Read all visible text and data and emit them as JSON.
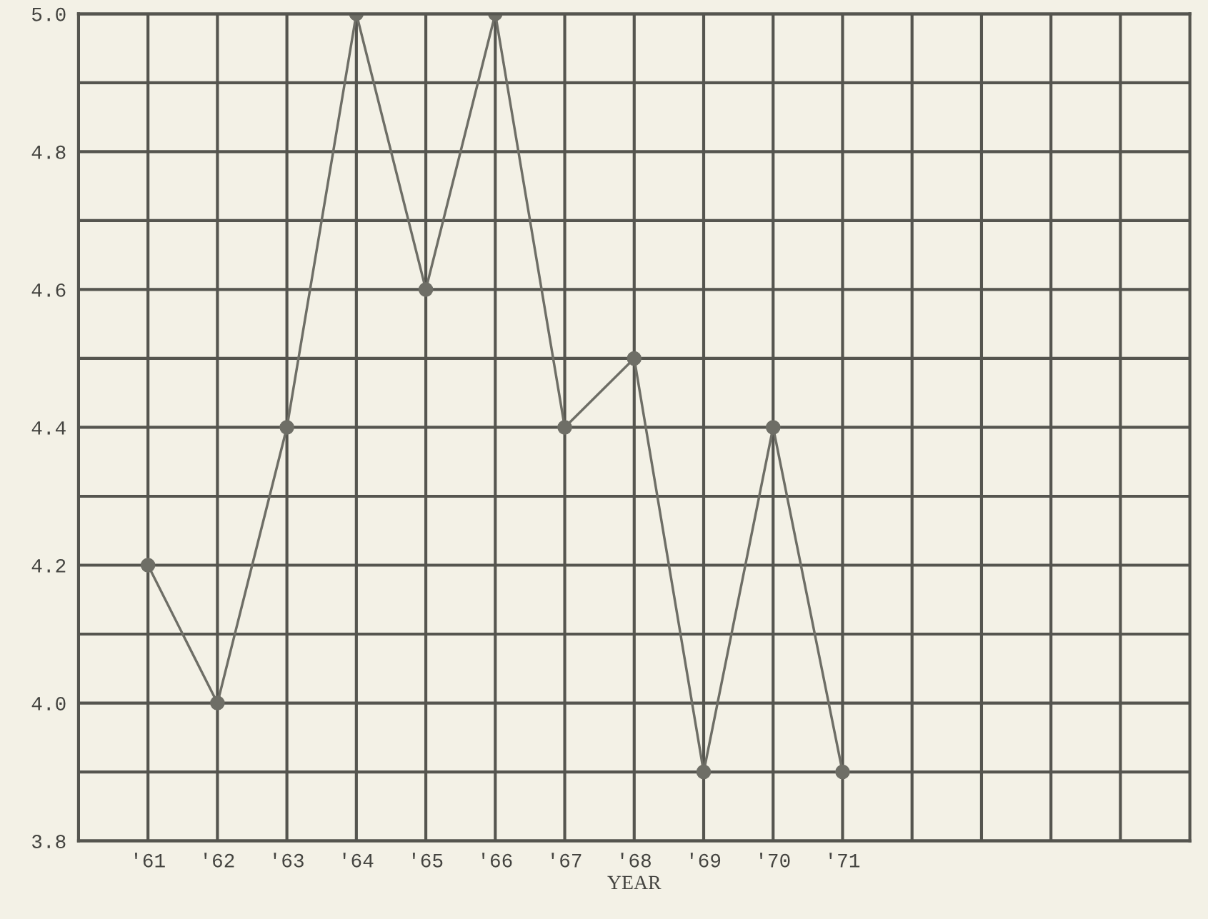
{
  "chart_data": {
    "type": "line",
    "xlabel": "YEAR",
    "categories": [
      "'61",
      "'62",
      "'63",
      "'64",
      "'65",
      "'66",
      "'67",
      "'68",
      "'69",
      "'70",
      "'71",
      null,
      null,
      null,
      null
    ],
    "series": [
      {
        "color": "#6e6e66",
        "values": [
          4.2,
          4.0,
          4.4,
          5.0,
          4.6,
          5.0,
          4.4,
          4.5,
          3.9,
          4.4,
          3.9,
          null,
          null,
          null,
          null
        ]
      }
    ],
    "ylim": [
      3.8,
      5.0
    ],
    "yticks": [
      {
        "value": 3.8,
        "label": "3.8"
      },
      {
        "value": 3.9,
        "label": null
      },
      {
        "value": 4.0,
        "label": "4.0"
      },
      {
        "value": 4.1,
        "label": null
      },
      4.2,
      {
        "value": 4.3,
        "label": null
      },
      4.4,
      {
        "value": 4.5,
        "label": null
      },
      4.6,
      {
        "value": 4.7,
        "label": null
      },
      4.8,
      {
        "value": 4.9,
        "label": null
      },
      {
        "value": 5.0,
        "label": "5.0"
      }
    ],
    "grid": true,
    "marker": "circle",
    "line_style": "solid"
  }
}
